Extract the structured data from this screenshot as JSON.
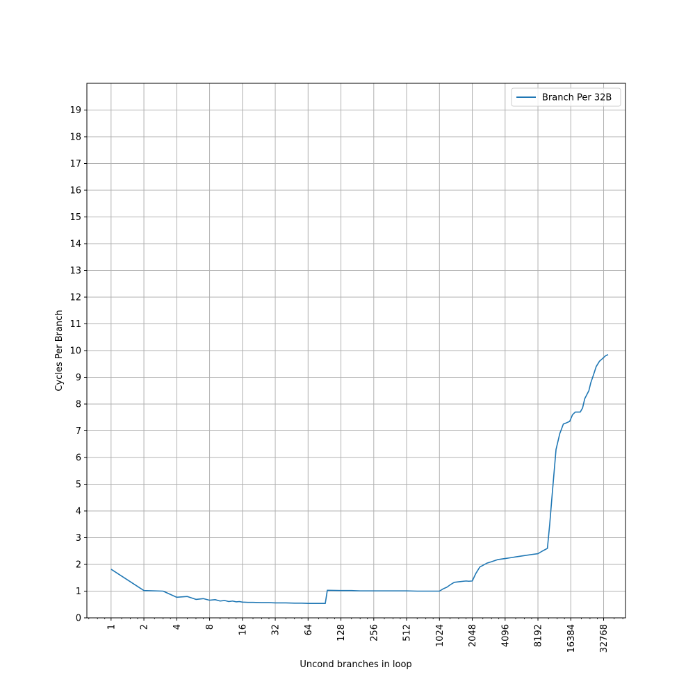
{
  "chart_data": {
    "type": "line",
    "title": "",
    "xlabel": "Uncond branches in loop",
    "ylabel": "Cycles Per Branch",
    "x_scale": "log2",
    "xlim": [
      0.6,
      52000
    ],
    "ylim": [
      0,
      20
    ],
    "x_ticks": [
      1,
      2,
      4,
      8,
      16,
      32,
      64,
      128,
      256,
      512,
      1024,
      2048,
      4096,
      8192,
      16384,
      32768
    ],
    "x_tick_labels": [
      "1",
      "2",
      "4",
      "8",
      "16",
      "32",
      "64",
      "128",
      "256",
      "512",
      "1024",
      "2048",
      "4096",
      "8192",
      "16384",
      "32768"
    ],
    "y_ticks": [
      0,
      1,
      2,
      3,
      4,
      5,
      6,
      7,
      8,
      9,
      10,
      11,
      12,
      13,
      14,
      15,
      16,
      17,
      18,
      19
    ],
    "y_tick_labels": [
      "0",
      "1",
      "2",
      "3",
      "4",
      "5",
      "6",
      "7",
      "8",
      "9",
      "10",
      "11",
      "12",
      "13",
      "14",
      "15",
      "16",
      "17",
      "18",
      "19"
    ],
    "grid": true,
    "legend_position": "top-right",
    "series": [
      {
        "name": "Branch Per 32B",
        "color": "#1f77b4",
        "x": [
          1,
          2,
          3,
          4,
          5,
          6,
          7,
          8,
          9,
          10,
          11,
          12,
          13,
          14,
          15,
          16,
          18,
          20,
          24,
          28,
          32,
          40,
          48,
          56,
          64,
          72,
          80,
          88,
          92,
          96,
          128,
          160,
          192,
          256,
          384,
          512,
          640,
          768,
          896,
          1024,
          1100,
          1200,
          1300,
          1400,
          1536,
          1700,
          1800,
          1900,
          2048,
          2200,
          2400,
          2600,
          2800,
          3072,
          3500,
          4096,
          4600,
          5120,
          6144,
          7168,
          8192,
          9000,
          10000,
          10500,
          11000,
          12000,
          13000,
          14000,
          15000,
          16000,
          17000,
          18000,
          20000,
          21000,
          22000,
          24000,
          25000,
          26000,
          27000,
          28000,
          30000,
          32000,
          34000,
          36000
        ],
        "y": [
          1.82,
          1.02,
          1.0,
          0.77,
          0.8,
          0.69,
          0.72,
          0.66,
          0.68,
          0.63,
          0.65,
          0.61,
          0.63,
          0.6,
          0.61,
          0.59,
          0.58,
          0.58,
          0.57,
          0.57,
          0.56,
          0.56,
          0.55,
          0.55,
          0.54,
          0.54,
          0.54,
          0.54,
          0.54,
          1.03,
          1.02,
          1.02,
          1.01,
          1.01,
          1.01,
          1.01,
          1.0,
          1.0,
          1.0,
          1.0,
          1.08,
          1.15,
          1.25,
          1.33,
          1.35,
          1.37,
          1.38,
          1.37,
          1.38,
          1.65,
          1.9,
          1.98,
          2.05,
          2.1,
          2.18,
          2.22,
          2.25,
          2.28,
          2.33,
          2.37,
          2.4,
          2.5,
          2.6,
          3.5,
          4.5,
          6.3,
          6.9,
          7.25,
          7.3,
          7.35,
          7.6,
          7.7,
          7.7,
          7.85,
          8.2,
          8.5,
          8.8,
          9.0,
          9.2,
          9.4,
          9.6,
          9.7,
          9.8,
          9.85
        ]
      }
    ]
  }
}
